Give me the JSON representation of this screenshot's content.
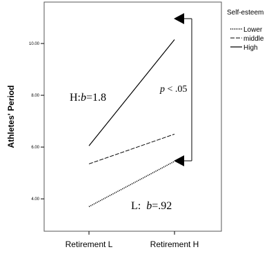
{
  "chart_data": {
    "type": "line",
    "title": "",
    "xlabel": "",
    "ylabel": "Athletes' Period",
    "categories": [
      "Retirement L",
      "Retirement  H"
    ],
    "ylim": [
      2.75,
      11.6
    ],
    "yticks": [
      "4.00",
      "6.00",
      "8.00",
      "10.00"
    ],
    "grid": false,
    "legend": {
      "title": "Self-esteem",
      "placement": "right"
    },
    "series": [
      {
        "name": "Lower",
        "style": "dotted",
        "values": [
          3.7,
          5.45
        ]
      },
      {
        "name": "middle",
        "style": "dashed",
        "values": [
          5.35,
          6.5
        ]
      },
      {
        "name": "High",
        "style": "solid",
        "values": [
          6.05,
          10.15
        ]
      }
    ],
    "annotations": {
      "high_slope_prefix": "H:",
      "high_slope_var": "b",
      "high_slope_value": "=1.8",
      "low_slope_prefix": "L:  ",
      "low_slope_var": "b",
      "low_slope_value": "=.92",
      "p_value_var": "p",
      "p_value_rest": " < .05"
    }
  }
}
